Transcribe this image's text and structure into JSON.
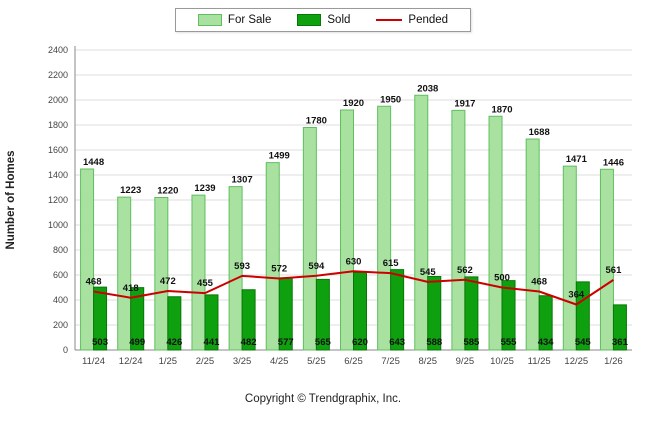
{
  "page": {
    "footer": "Copyright © Trendgraphix, Inc."
  },
  "legend": {
    "for_sale": "For Sale",
    "sold": "Sold",
    "pended": "Pended"
  },
  "colors": {
    "for_sale_fill": "#A9E2A0",
    "for_sale_border": "#5FBF5F",
    "sold_fill": "#0FA00F",
    "sold_border": "#077807",
    "pended_line": "#CC0000",
    "gridline": "#DCDCDC",
    "axis": "#8A8A8A",
    "label_text": "#111111",
    "tick_text": "#444444"
  },
  "chart_data": {
    "type": "bar",
    "title": "",
    "xlabel": "",
    "ylabel": "Number of Homes",
    "ylim": [
      0,
      2400
    ],
    "ytick_step": 200,
    "grid": true,
    "legend_position": "top",
    "categories": [
      "11/24",
      "12/24",
      "1/25",
      "2/25",
      "3/25",
      "4/25",
      "5/25",
      "6/25",
      "7/25",
      "8/25",
      "9/25",
      "10/25",
      "11/25",
      "12/25",
      "1/26"
    ],
    "series": [
      {
        "name": "For Sale",
        "type": "bar",
        "color": "#A9E2A0",
        "border": "#5FBF5F",
        "values": [
          1448,
          1223,
          1220,
          1239,
          1307,
          1499,
          1780,
          1920,
          1950,
          2038,
          1917,
          1870,
          1688,
          1471,
          1446
        ]
      },
      {
        "name": "Sold",
        "type": "bar",
        "color": "#0FA00F",
        "border": "#077807",
        "values": [
          503,
          499,
          426,
          441,
          482,
          577,
          565,
          620,
          643,
          588,
          585,
          555,
          434,
          545,
          361
        ]
      },
      {
        "name": "Pended",
        "type": "line",
        "color": "#CC0000",
        "values": [
          468,
          418,
          472,
          455,
          593,
          572,
          594,
          630,
          615,
          545,
          562,
          500,
          468,
          364,
          561
        ]
      }
    ]
  }
}
